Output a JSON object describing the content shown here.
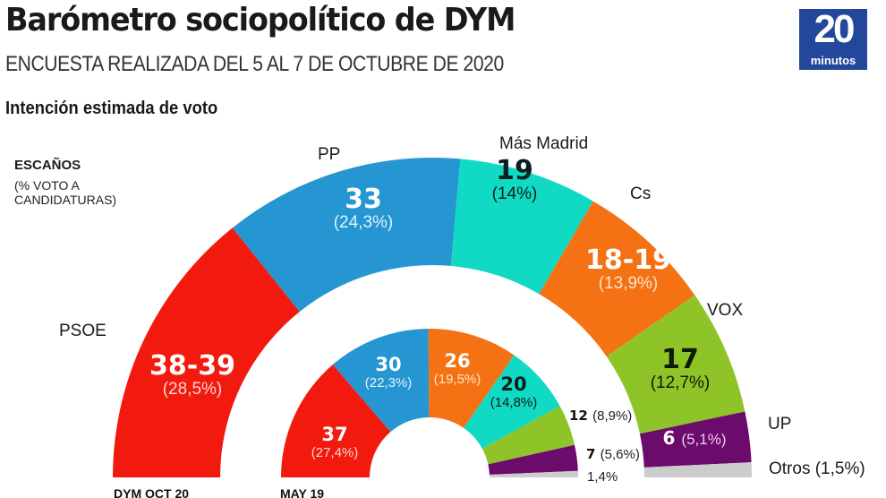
{
  "header": {
    "title": "Barómetro sociopolítico de DYM",
    "subtitle": "ENCUESTA REALIZADA DEL 5 AL 7 DE OCTUBRE DE 2020",
    "section": "Intención estimada de voto"
  },
  "logo": {
    "number": "20",
    "word": "minutos",
    "color": "#23479a"
  },
  "legend": {
    "heading": "ESCAÑOS",
    "subheading": "(% VOTO A\nCANDIDATURAS)"
  },
  "chart_data": [
    {
      "type": "pie",
      "variant": "half-donut",
      "name": "DYM OCT 20",
      "caption": "DYM OCT 20",
      "series": [
        {
          "party": "PSOE",
          "seats": "38-39",
          "pct": 28.5,
          "pct_label": "(28,5%)",
          "color": "#f21a0f",
          "text_color": "#ffffff",
          "pct_color": "#ffd6cf"
        },
        {
          "party": "PP",
          "seats": "33",
          "pct": 24.3,
          "pct_label": "(24,3%)",
          "color": "#2596d1",
          "text_color": "#ffffff",
          "pct_color": "#e2f2ff"
        },
        {
          "party": "Más Madrid",
          "seats": "19",
          "pct": 14.0,
          "pct_label": "(14%)",
          "color": "#10d9c4",
          "text_color": "#0b1f1e",
          "pct_color": "#0b1f1e"
        },
        {
          "party": "Cs",
          "seats": "18-19",
          "pct": 13.9,
          "pct_label": "(13,9%)",
          "color": "#f57214",
          "text_color": "#ffffff",
          "pct_color": "#ffe3c8"
        },
        {
          "party": "VOX",
          "seats": "17",
          "pct": 12.7,
          "pct_label": "(12,7%)",
          "color": "#8ec428",
          "text_color": "#0f1a05",
          "pct_color": "#0f1a05"
        },
        {
          "party": "UP",
          "seats": "6",
          "pct": 5.1,
          "pct_label": "(5,1%)",
          "color": "#6b0b6b",
          "text_color": "#ffffff",
          "pct_color": "#f3c7f3"
        },
        {
          "party": "Otros",
          "seats": "",
          "pct": 1.5,
          "pct_label": "Otros (1,5%)",
          "color": "#cccccc",
          "text_color": "#1a1a1a",
          "pct_color": "#1a1a1a"
        }
      ]
    },
    {
      "type": "pie",
      "variant": "half-donut",
      "name": "MAY 19",
      "caption": "MAY 19",
      "series": [
        {
          "party": "PSOE",
          "seats": "37",
          "pct": 27.4,
          "pct_label": "(27,4%)",
          "color": "#f21a0f",
          "text_color": "#ffffff",
          "pct_color": "#ffd6cf"
        },
        {
          "party": "PP",
          "seats": "30",
          "pct": 22.3,
          "pct_label": "(22,3%)",
          "color": "#2596d1",
          "text_color": "#ffffff",
          "pct_color": "#e2f2ff"
        },
        {
          "party": "Cs",
          "seats": "26",
          "pct": 19.5,
          "pct_label": "(19,5%)",
          "color": "#f57214",
          "text_color": "#ffffff",
          "pct_color": "#ffe3c8"
        },
        {
          "party": "Más Madrid",
          "seats": "20",
          "pct": 14.8,
          "pct_label": "(14,8%)",
          "color": "#10d9c4",
          "text_color": "#0b1f1e",
          "pct_color": "#0b1f1e"
        },
        {
          "party": "VOX",
          "seats": "12",
          "pct": 8.9,
          "pct_label": "(8,9%)",
          "color": "#8ec428",
          "text_color": "#1a1a1a",
          "pct_color": "#1a1a1a"
        },
        {
          "party": "UP",
          "seats": "7",
          "pct": 5.6,
          "pct_label": "(5,6%)",
          "color": "#6b0b6b",
          "text_color": "#1a1a1a",
          "pct_color": "#1a1a1a"
        },
        {
          "party": "Otros",
          "seats": "",
          "pct": 1.4,
          "pct_label": "1,4%",
          "color": "#cccccc",
          "text_color": "#1a1a1a",
          "pct_color": "#1a1a1a"
        }
      ]
    }
  ]
}
